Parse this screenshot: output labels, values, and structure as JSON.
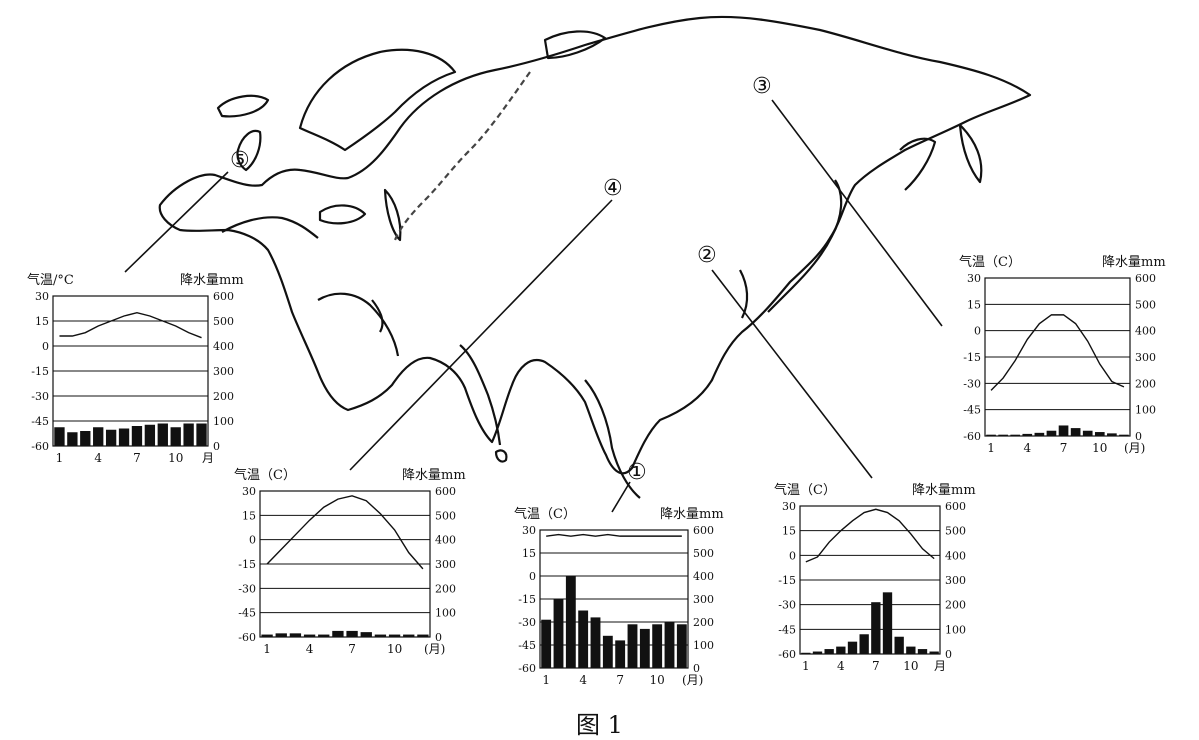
{
  "figure": {
    "caption": "图 1"
  },
  "markers": [
    {
      "id": "1",
      "label": "①"
    },
    {
      "id": "2",
      "label": "②"
    },
    {
      "id": "3",
      "label": "③"
    },
    {
      "id": "4",
      "label": "④"
    },
    {
      "id": "5",
      "label": "⑤"
    }
  ],
  "colors": {
    "ink": "#111111",
    "bars": "#111111",
    "background": "#ffffff"
  },
  "chart_data": [
    {
      "id": "5",
      "type": "bar+line",
      "temp_label": "气温/°C",
      "precip_label": "降水量mm",
      "temp_ticks": [
        "30",
        "15",
        "0",
        "-15",
        "-30",
        "-45",
        "-60"
      ],
      "precip_ticks": [
        "600",
        "500",
        "400",
        "300",
        "200",
        "100",
        "0"
      ],
      "x_ticks": [
        "1",
        "4",
        "7",
        "10"
      ],
      "x_unit": "月",
      "ylim_temp": [
        -60,
        30
      ],
      "ylim_precip": [
        0,
        600
      ],
      "temperature": [
        6,
        6,
        8,
        12,
        15,
        18,
        20,
        18,
        15,
        12,
        8,
        5
      ],
      "precipitation": [
        75,
        55,
        60,
        75,
        65,
        70,
        80,
        85,
        90,
        75,
        90,
        90
      ]
    },
    {
      "id": "4",
      "type": "bar+line",
      "temp_label": "气温（C）",
      "precip_label": "降水量mm",
      "temp_ticks": [
        "30",
        "15",
        "0",
        "-15",
        "-30",
        "-45",
        "-60"
      ],
      "precip_ticks": [
        "600",
        "500",
        "400",
        "300",
        "200",
        "100",
        "0"
      ],
      "x_ticks": [
        "1",
        "4",
        "7",
        "10"
      ],
      "x_unit": "(月)",
      "ylim_temp": [
        -60,
        30
      ],
      "ylim_precip": [
        0,
        600
      ],
      "temperature": [
        -15,
        -6,
        3,
        12,
        20,
        25,
        27,
        24,
        16,
        6,
        -8,
        -18
      ],
      "precipitation": [
        10,
        15,
        15,
        10,
        10,
        25,
        25,
        20,
        10,
        10,
        10,
        10
      ]
    },
    {
      "id": "1",
      "type": "bar+line",
      "temp_label": "气温（C）",
      "precip_label": "降水量mm",
      "temp_ticks": [
        "30",
        "15",
        "0",
        "-15",
        "-30",
        "-45",
        "-60"
      ],
      "precip_ticks": [
        "600",
        "500",
        "400",
        "300",
        "200",
        "100",
        "0"
      ],
      "x_ticks": [
        "1",
        "4",
        "7",
        "10"
      ],
      "x_unit": "(月)",
      "ylim_temp": [
        -60,
        30
      ],
      "ylim_precip": [
        0,
        600
      ],
      "temperature": [
        26,
        27,
        26,
        27,
        26,
        27,
        26,
        26,
        26,
        26,
        26,
        26
      ],
      "precipitation": [
        210,
        300,
        400,
        250,
        220,
        140,
        120,
        190,
        170,
        190,
        200,
        190
      ]
    },
    {
      "id": "2",
      "type": "bar+line",
      "temp_label": "气温（C）",
      "precip_label": "降水量mm",
      "temp_ticks": [
        "30",
        "15",
        "0",
        "-15",
        "-30",
        "-45",
        "-60"
      ],
      "precip_ticks": [
        "600",
        "500",
        "400",
        "300",
        "200",
        "100",
        "0"
      ],
      "x_ticks": [
        "1",
        "4",
        "7",
        "10"
      ],
      "x_unit": "月",
      "ylim_temp": [
        -60,
        30
      ],
      "ylim_precip": [
        0,
        600
      ],
      "temperature": [
        -4,
        -1,
        8,
        15,
        21,
        26,
        28,
        26,
        21,
        13,
        4,
        -2
      ],
      "precipitation": [
        5,
        10,
        20,
        30,
        50,
        80,
        210,
        250,
        70,
        30,
        20,
        10
      ]
    },
    {
      "id": "3",
      "type": "bar+line",
      "temp_label": "气温（C）",
      "precip_label": "降水量mm",
      "temp_ticks": [
        "30",
        "15",
        "0",
        "-15",
        "-30",
        "-45",
        "-60"
      ],
      "precip_ticks": [
        "600",
        "500",
        "400",
        "300",
        "200",
        "100",
        "0"
      ],
      "x_ticks": [
        "1",
        "4",
        "7",
        "10"
      ],
      "x_unit": "(月)",
      "ylim_temp": [
        -60,
        30
      ],
      "ylim_precip": [
        0,
        600
      ],
      "temperature": [
        -34,
        -27,
        -17,
        -5,
        4,
        9,
        9,
        4,
        -6,
        -19,
        -29,
        -32
      ],
      "precipitation": [
        5,
        5,
        5,
        8,
        12,
        20,
        40,
        30,
        20,
        15,
        10,
        5
      ]
    }
  ]
}
